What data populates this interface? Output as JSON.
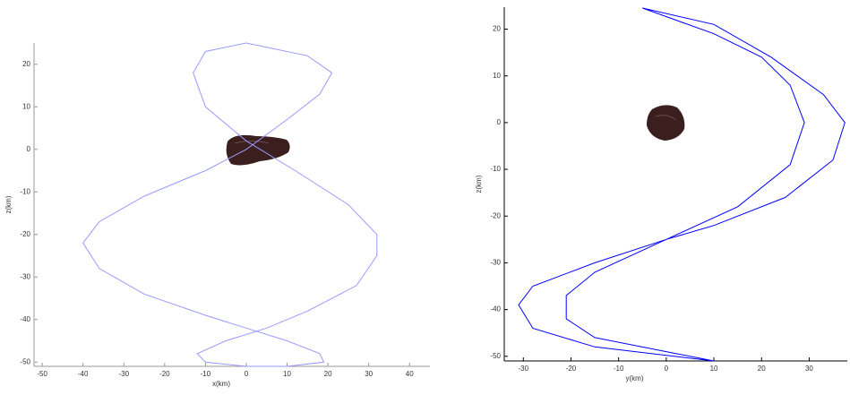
{
  "chart_data": [
    {
      "type": "line",
      "xlabel": "x(km)",
      "ylabel": "z(km)",
      "color": "#9a9aff",
      "xlim": [
        -52,
        45
      ],
      "ylim": [
        -51,
        25
      ],
      "xticks": [
        -50,
        -40,
        -30,
        -20,
        -10,
        0,
        10,
        20,
        30,
        40
      ],
      "yticks": [
        -50,
        -40,
        -30,
        -20,
        -10,
        0,
        10,
        20
      ],
      "x": [
        0,
        15,
        21,
        18,
        10,
        0,
        -10,
        -25,
        -36,
        -40,
        -36,
        -25,
        -10,
        0,
        10,
        18,
        19,
        10,
        0,
        -10,
        -12,
        -5,
        5,
        15,
        27,
        32,
        32,
        25,
        12,
        0,
        -10,
        -13,
        -10,
        0
      ],
      "values": [
        25,
        22,
        18,
        13,
        7,
        0,
        -5,
        -11,
        -17,
        -22,
        -28,
        -34,
        -39,
        -42,
        -45,
        -48,
        -50,
        -51,
        -51,
        -50,
        -48,
        -45,
        -42,
        -38,
        -32,
        -25,
        -20,
        -13,
        -5,
        2,
        10,
        18,
        23,
        25
      ]
    },
    {
      "type": "line",
      "xlabel": "y(km)",
      "ylabel": "z(km)",
      "color": "#0000ff",
      "xlim": [
        -34,
        38
      ],
      "ylim": [
        -51,
        24.7
      ],
      "xticks": [
        -30,
        -20,
        -10,
        0,
        10,
        20,
        30
      ],
      "yticks": [
        -50,
        -40,
        -30,
        -20,
        -10,
        0,
        10,
        20
      ],
      "x": [
        -5,
        10,
        22,
        33,
        37.5,
        35,
        25,
        10,
        0,
        -15,
        -28,
        -31,
        -28,
        -15,
        10,
        0,
        -15,
        -21,
        -21,
        -15,
        0,
        15,
        26,
        29,
        26,
        20,
        10,
        -5
      ],
      "values": [
        24.5,
        21,
        14,
        6,
        0,
        -8,
        -16,
        -22,
        -25,
        -30,
        -35,
        -39,
        -44,
        -48,
        -51,
        -49,
        -46,
        -42,
        -37,
        -32,
        -25,
        -18,
        -9,
        0,
        8,
        14,
        19,
        24.5
      ]
    }
  ]
}
